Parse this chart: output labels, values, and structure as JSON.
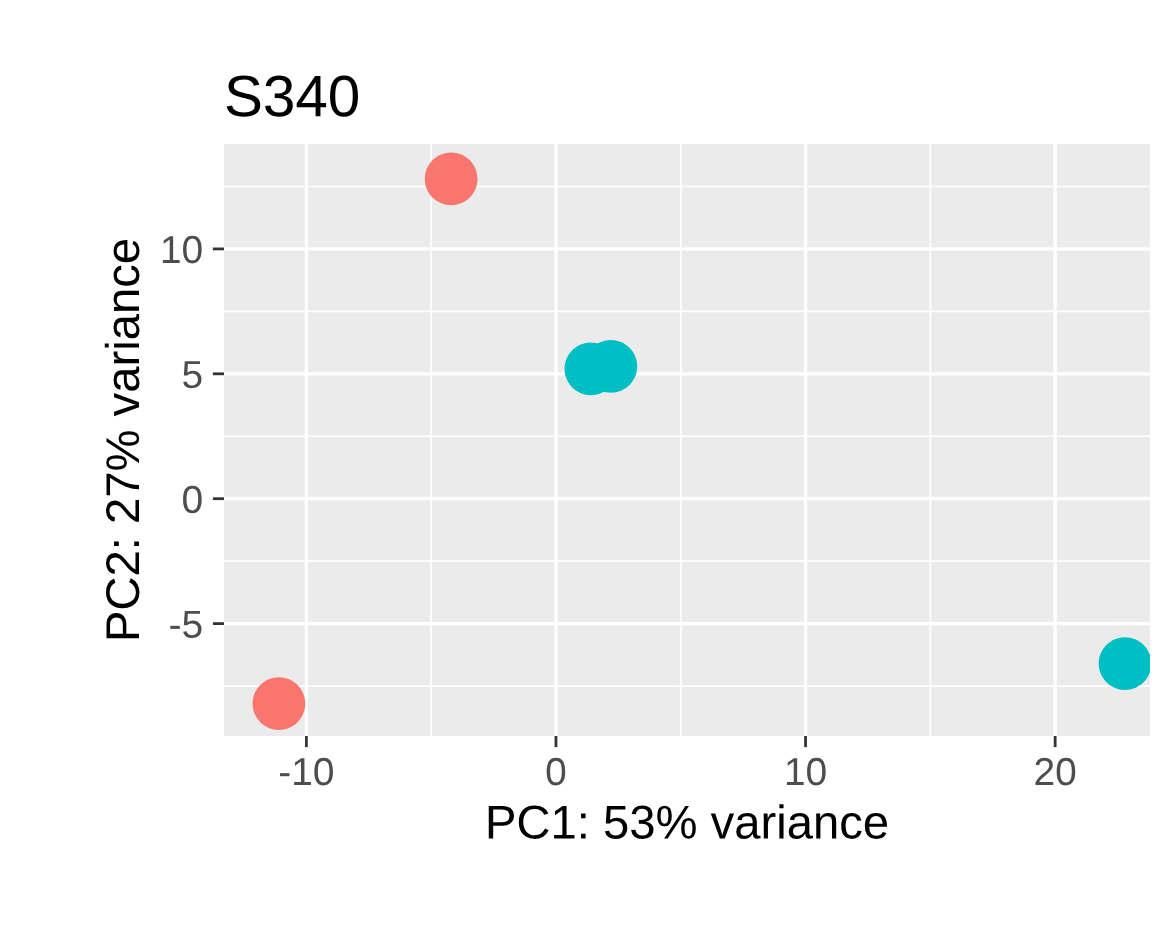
{
  "chart_data": {
    "type": "scatter",
    "title": "S340",
    "xlabel": "PC1: 53% variance",
    "ylabel": "PC2: 27% variance",
    "series": [
      {
        "color": "#f8766d",
        "x": [
          -4.2,
          -11.1
        ],
        "values": [
          12.8,
          -8.2
        ]
      },
      {
        "color": "#00bfc4",
        "x": [
          1.4,
          2.2,
          22.8
        ],
        "values": [
          5.2,
          5.3,
          -6.6
        ]
      }
    ],
    "xlim": [
      -13.3,
      23.8
    ],
    "ylim": [
      -9.5,
      14.2
    ],
    "xticks": [
      -10,
      0,
      10,
      20
    ],
    "yticks": [
      -5,
      0,
      5,
      10
    ],
    "grid": true,
    "marker": "circle",
    "legend": false
  }
}
